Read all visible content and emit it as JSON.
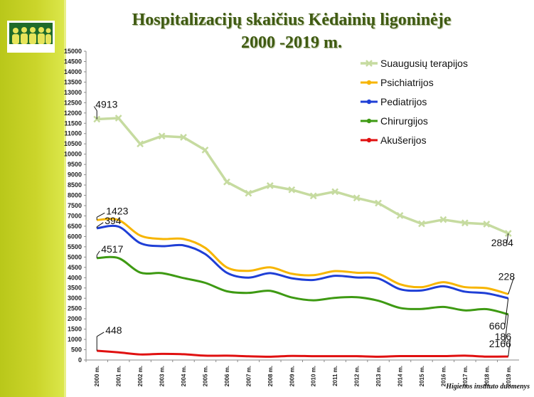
{
  "title_line1": "Hospitalizacijų skaičius Kėdainių ligoninėje",
  "title_line2": "2000 -2019 m.",
  "source": "Higienos instituto duomenys",
  "chart_data": {
    "type": "line",
    "categories": [
      "2000 m.",
      "2001 m.",
      "2002 m.",
      "2003 m.",
      "2004 m.",
      "2005 m.",
      "2006 m.",
      "2007 m.",
      "2008 m.",
      "2009 m.",
      "2010 m.",
      "2011 m.",
      "2012 m.",
      "2013 m.",
      "2014 m.",
      "2015 m.",
      "2016 m.",
      "2017 m.",
      "2018 m.",
      "2019 m."
    ],
    "ylim": [
      0,
      15000
    ],
    "ytick_step": 500,
    "legend_position": "top-right",
    "series": [
      {
        "name": "Suaugusių terapijos",
        "color": "#c6dba0",
        "marker": "cross",
        "values": [
          11700,
          11750,
          10500,
          10880,
          10820,
          10200,
          8650,
          8100,
          8470,
          8270,
          7970,
          8180,
          7870,
          7620,
          7020,
          6620,
          6820,
          6660,
          6600,
          6150
        ]
      },
      {
        "name": "Psichiatrijos",
        "color": "#f7b500",
        "marker": "none",
        "values": [
          6800,
          6800,
          6050,
          5880,
          5880,
          5450,
          4500,
          4330,
          4500,
          4190,
          4120,
          4320,
          4240,
          4190,
          3680,
          3540,
          3780,
          3540,
          3490,
          3200
        ]
      },
      {
        "name": "Pediatrijos",
        "color": "#1f3fd6",
        "marker": "none",
        "values": [
          6400,
          6480,
          5680,
          5530,
          5570,
          5150,
          4240,
          4000,
          4220,
          3970,
          3890,
          4090,
          4010,
          3960,
          3440,
          3380,
          3580,
          3320,
          3240,
          3000
        ]
      },
      {
        "name": "Chirurgijos",
        "color": "#3e9a13",
        "marker": "none",
        "values": [
          4950,
          4950,
          4250,
          4220,
          3980,
          3750,
          3340,
          3260,
          3360,
          3040,
          2900,
          3020,
          3050,
          2880,
          2530,
          2480,
          2580,
          2410,
          2470,
          2220
        ]
      },
      {
        "name": "Akušerijos",
        "color": "#e01010",
        "marker": "none",
        "values": [
          450,
          370,
          270,
          300,
          280,
          210,
          210,
          180,
          160,
          200,
          185,
          185,
          185,
          160,
          190,
          190,
          190,
          210,
          165,
          170
        ]
      }
    ],
    "annotations": [
      {
        "text": "4913",
        "series": 0,
        "index": 0
      },
      {
        "text": "1423",
        "series": 1,
        "index": 0
      },
      {
        "text": "394",
        "series": 2,
        "index": 0
      },
      {
        "text": "4517",
        "series": 3,
        "index": 0
      },
      {
        "text": "448",
        "series": 4,
        "index": 0
      },
      {
        "text": "2884",
        "series": 0,
        "index": 19
      },
      {
        "text": "228",
        "series": 1,
        "index": 19
      },
      {
        "text": "660",
        "series": 2,
        "index": 19
      },
      {
        "text": "2166",
        "series": 3,
        "index": 19
      },
      {
        "text": "186",
        "series": 4,
        "index": 19
      }
    ]
  }
}
